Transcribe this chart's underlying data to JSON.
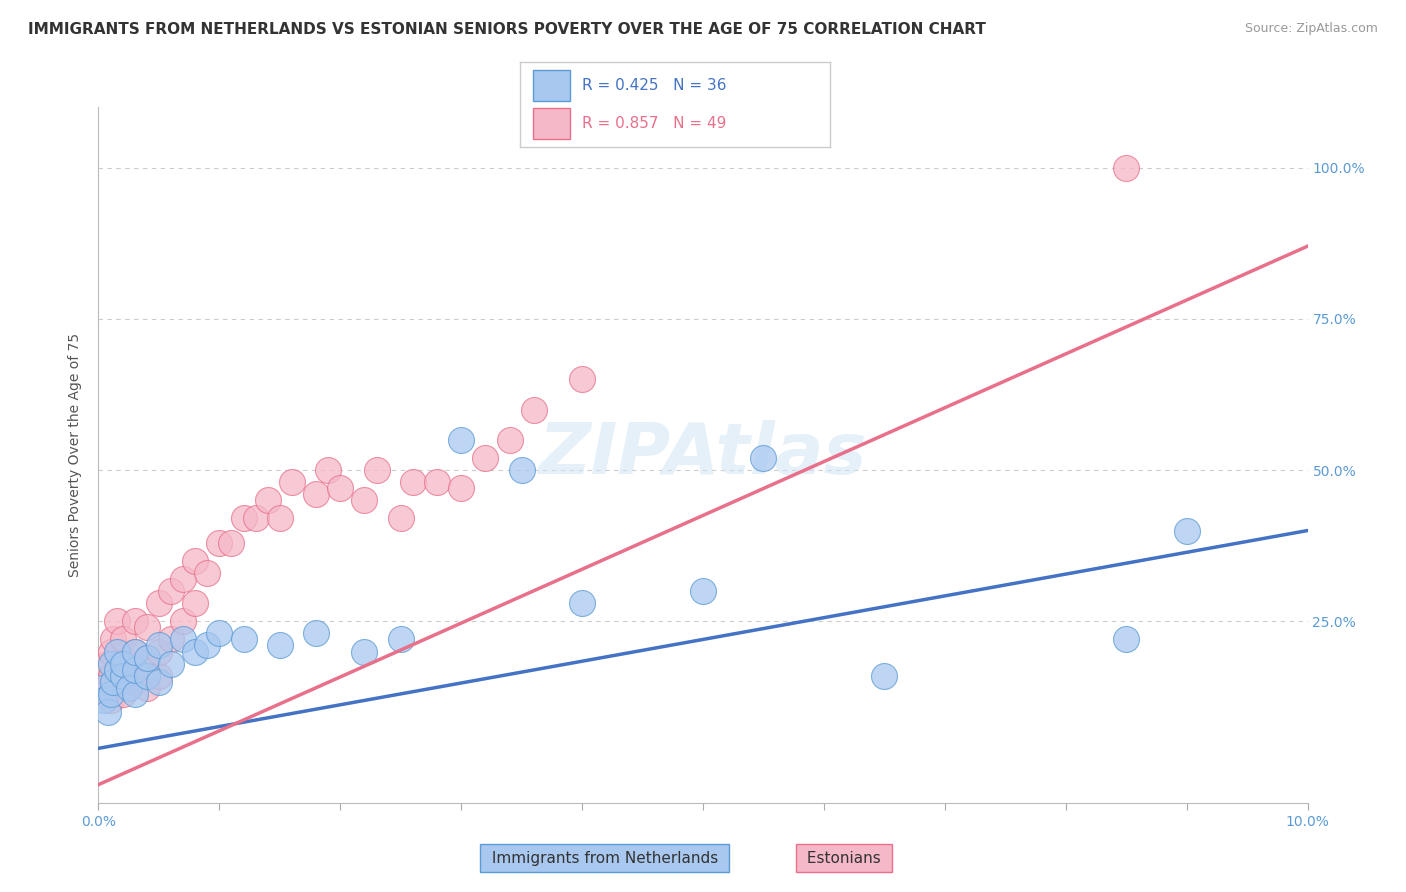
{
  "title": "IMMIGRANTS FROM NETHERLANDS VS ESTONIAN SENIORS POVERTY OVER THE AGE OF 75 CORRELATION CHART",
  "source": "Source: ZipAtlas.com",
  "ylabel": "Seniors Poverty Over the Age of 75",
  "y_tick_labels": [
    "25.0%",
    "50.0%",
    "75.0%",
    "100.0%"
  ],
  "y_tick_values": [
    0.25,
    0.5,
    0.75,
    1.0
  ],
  "xlim": [
    0.0,
    0.1
  ],
  "ylim": [
    -0.05,
    1.1
  ],
  "blue_r": "R = 0.425",
  "blue_n": "N = 36",
  "pink_r": "R = 0.857",
  "pink_n": "N = 49",
  "blue_label": "Immigrants from Netherlands",
  "pink_label": "Estonians",
  "blue_color": "#A8C8F0",
  "pink_color": "#F5B8C8",
  "blue_edge_color": "#5B9BD5",
  "pink_edge_color": "#E8708A",
  "blue_line_color": "#4472C4",
  "pink_line_color": "#E8708A",
  "blue_line_x": [
    0.0,
    0.1
  ],
  "blue_line_y": [
    0.04,
    0.4
  ],
  "pink_line_x": [
    0.0,
    0.1
  ],
  "pink_line_y": [
    -0.02,
    0.87
  ],
  "grid_color": "#CCCCCC",
  "background_color": "#FFFFFF",
  "title_fontsize": 11,
  "axis_label_fontsize": 10,
  "tick_fontsize": 10,
  "legend_fontsize": 11,
  "blue_scatter_x": [
    0.0003,
    0.0005,
    0.0008,
    0.001,
    0.001,
    0.0012,
    0.0015,
    0.0015,
    0.002,
    0.002,
    0.0025,
    0.003,
    0.003,
    0.003,
    0.004,
    0.004,
    0.005,
    0.005,
    0.006,
    0.007,
    0.008,
    0.009,
    0.01,
    0.012,
    0.015,
    0.018,
    0.022,
    0.025,
    0.03,
    0.035,
    0.04,
    0.05,
    0.055,
    0.065,
    0.085,
    0.09
  ],
  "blue_scatter_y": [
    0.14,
    0.12,
    0.1,
    0.18,
    0.13,
    0.15,
    0.17,
    0.2,
    0.16,
    0.18,
    0.14,
    0.13,
    0.17,
    0.2,
    0.16,
    0.19,
    0.15,
    0.21,
    0.18,
    0.22,
    0.2,
    0.21,
    0.23,
    0.22,
    0.21,
    0.23,
    0.2,
    0.22,
    0.55,
    0.5,
    0.28,
    0.3,
    0.52,
    0.16,
    0.22,
    0.4
  ],
  "pink_scatter_x": [
    0.0003,
    0.0005,
    0.0007,
    0.001,
    0.001,
    0.001,
    0.0012,
    0.0015,
    0.002,
    0.002,
    0.002,
    0.0025,
    0.003,
    0.003,
    0.003,
    0.004,
    0.004,
    0.004,
    0.005,
    0.005,
    0.005,
    0.006,
    0.006,
    0.007,
    0.007,
    0.008,
    0.008,
    0.009,
    0.01,
    0.011,
    0.012,
    0.013,
    0.014,
    0.015,
    0.016,
    0.018,
    0.019,
    0.02,
    0.022,
    0.023,
    0.025,
    0.026,
    0.028,
    0.03,
    0.032,
    0.034,
    0.036,
    0.04,
    0.085
  ],
  "pink_scatter_y": [
    0.13,
    0.15,
    0.18,
    0.12,
    0.16,
    0.2,
    0.22,
    0.25,
    0.13,
    0.17,
    0.22,
    0.18,
    0.15,
    0.2,
    0.25,
    0.14,
    0.19,
    0.24,
    0.16,
    0.2,
    0.28,
    0.22,
    0.3,
    0.25,
    0.32,
    0.28,
    0.35,
    0.33,
    0.38,
    0.38,
    0.42,
    0.42,
    0.45,
    0.42,
    0.48,
    0.46,
    0.5,
    0.47,
    0.45,
    0.5,
    0.42,
    0.48,
    0.48,
    0.47,
    0.52,
    0.55,
    0.6,
    0.65,
    1.0
  ]
}
